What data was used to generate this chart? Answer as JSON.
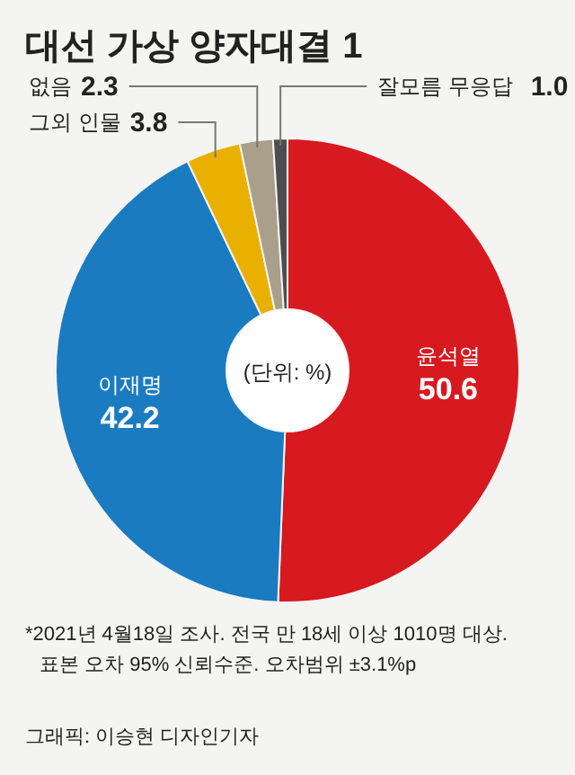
{
  "chart_data": {
    "type": "donut",
    "title": "대선 가상 양자대결 1",
    "categories": [
      "윤석열",
      "이재명",
      "그외 인물",
      "없음",
      "잘모름 무응답"
    ],
    "values": [
      50.6,
      42.2,
      3.8,
      2.3,
      1.0
    ],
    "colors": [
      "#d71920",
      "#1a7bc1",
      "#eab000",
      "#a99f8b",
      "#4d4d4f"
    ],
    "value_labels": [
      "50.6",
      "42.2",
      "3.8",
      "2.3",
      "1.0"
    ],
    "annotations": [
      "(단위: %)",
      "*2021년 4월18일 조사. 전국 만 18세 이상 1010명 대상.",
      "표본 오차 95% 신뢰수준. 오차범위 ±3.1%p",
      "그래픽: 이승현 디자인기자"
    ]
  }
}
